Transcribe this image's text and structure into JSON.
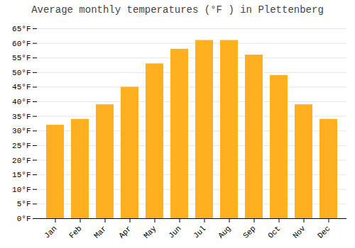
{
  "chart_data": {
    "type": "bar",
    "title": "Average monthly temperatures (°F ) in Plettenberg",
    "categories": [
      "Jan",
      "Feb",
      "Mar",
      "Apr",
      "May",
      "Jun",
      "Jul",
      "Aug",
      "Sep",
      "Oct",
      "Nov",
      "Dec"
    ],
    "values": [
      32,
      34,
      39,
      45,
      53,
      58,
      61,
      61,
      56,
      49,
      39,
      34
    ],
    "color": "#FFB020",
    "ylim": [
      0,
      65
    ],
    "yticks": [
      {
        "value": 0,
        "label": "0°F"
      },
      {
        "value": 5,
        "label": "5°F"
      },
      {
        "value": 10,
        "label": "10°F"
      },
      {
        "value": 15,
        "label": "15°F"
      },
      {
        "value": 20,
        "label": "20°F"
      },
      {
        "value": 25,
        "label": "25°F"
      },
      {
        "value": 30,
        "label": "30°F"
      },
      {
        "value": 35,
        "label": "35°F"
      },
      {
        "value": 40,
        "label": "40°F"
      },
      {
        "value": 45,
        "label": "45°F"
      },
      {
        "value": 50,
        "label": "50°F"
      },
      {
        "value": 55,
        "label": "55°F"
      },
      {
        "value": 60,
        "label": "60°F"
      },
      {
        "value": 65,
        "label": "65°F"
      }
    ],
    "grid": true
  }
}
